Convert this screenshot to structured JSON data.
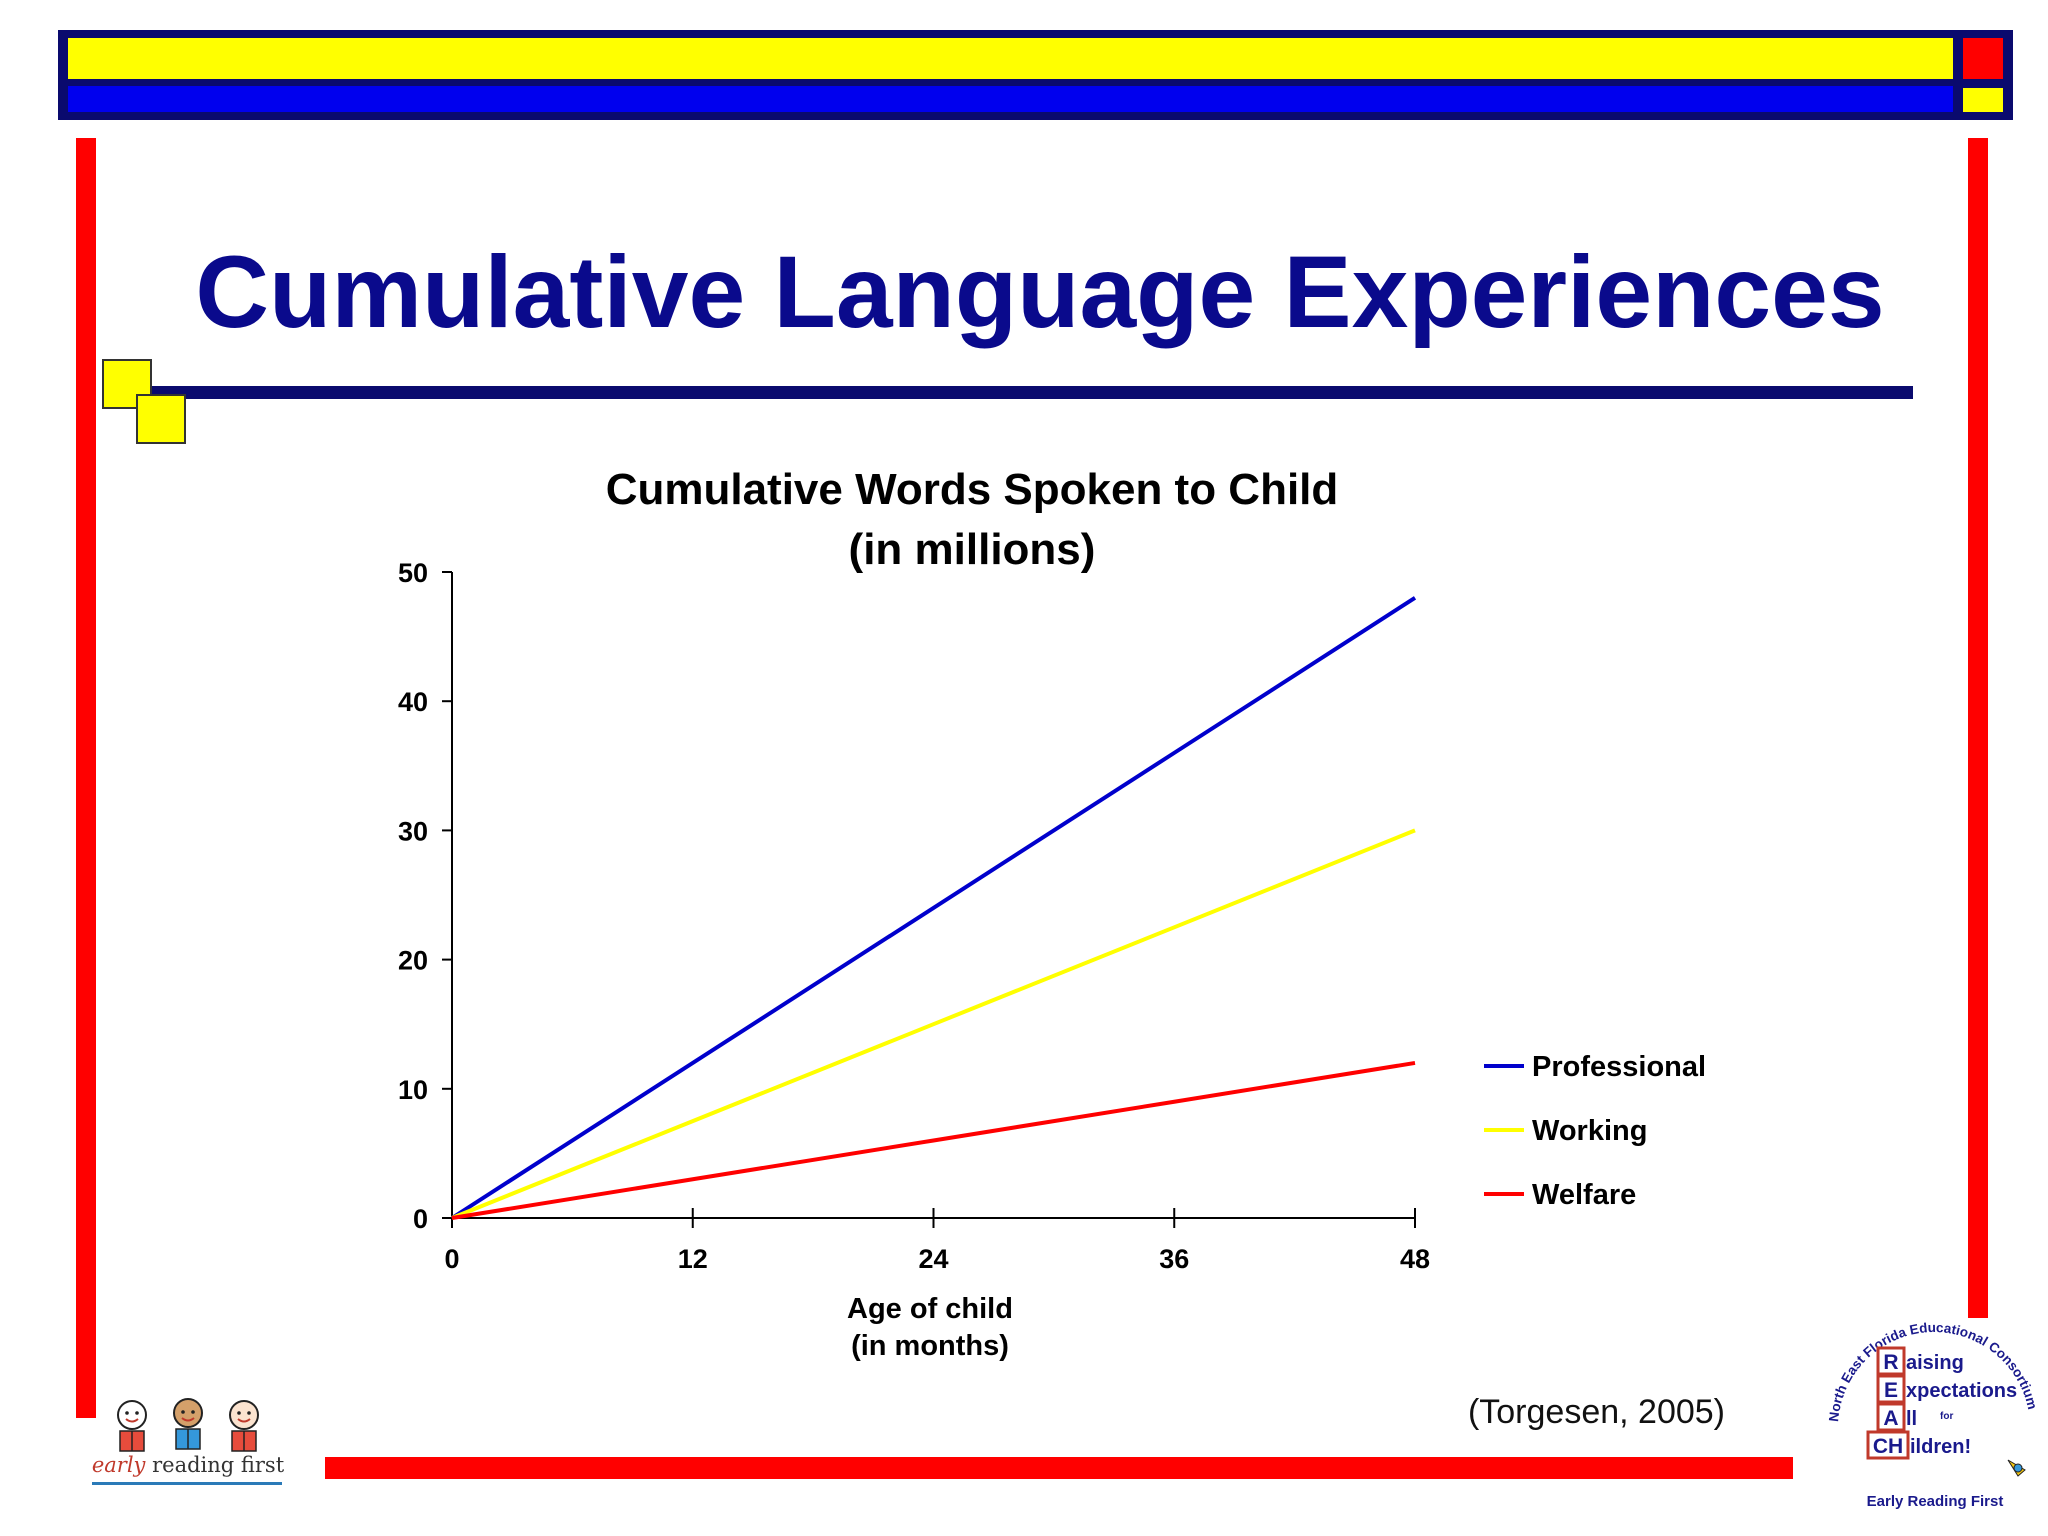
{
  "slide": {
    "title": "Cumulative Language Experiences",
    "citation": "(Torgesen, 2005)"
  },
  "logos": {
    "early_reading_first": {
      "text_italic": "early",
      "text_rest": " reading first"
    },
    "reach": {
      "arc_text": "North East Florida Educational Consortium",
      "letters": [
        "R",
        "E",
        "A",
        "CH"
      ],
      "words": [
        "aising",
        "xpectations",
        "ll",
        "ildren!"
      ],
      "for_text": "for",
      "footer": "Early Reading First"
    }
  },
  "chart_data": {
    "type": "line",
    "title": [
      "Cumulative Words Spoken to Child",
      "(in millions)"
    ],
    "xlabel": [
      "Age of child",
      "(in months)"
    ],
    "ylabel": "",
    "x": [
      0,
      12,
      24,
      36,
      48
    ],
    "x_ticks": [
      "0",
      "12",
      "24",
      "36",
      "48"
    ],
    "y_ticks": [
      "0",
      "10",
      "20",
      "30",
      "40",
      "50"
    ],
    "xlim": [
      0,
      48
    ],
    "ylim": [
      0,
      50
    ],
    "grid": false,
    "legend_position": "right",
    "series": [
      {
        "name": "Professional",
        "color": "#0000cc",
        "values": [
          0,
          12,
          24,
          36,
          48
        ]
      },
      {
        "name": "Working",
        "color": "#ffff00",
        "values": [
          0,
          7.5,
          15,
          22.5,
          30
        ]
      },
      {
        "name": "Welfare",
        "color": "#ff0000",
        "values": [
          0,
          3,
          6,
          9,
          12
        ]
      }
    ]
  }
}
